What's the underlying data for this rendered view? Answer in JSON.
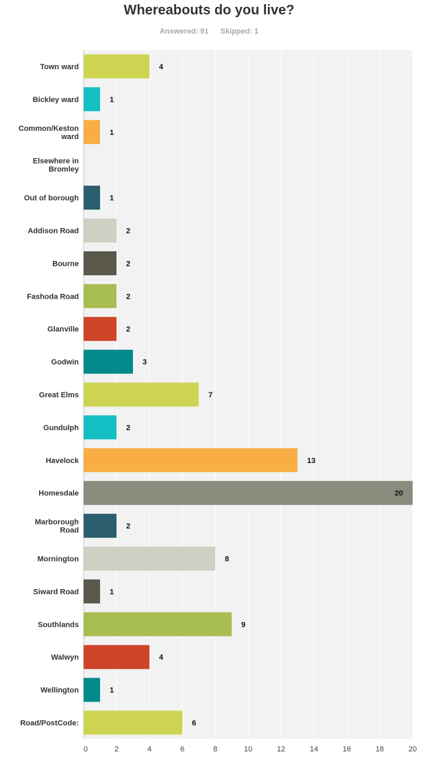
{
  "header": {
    "title": "Whereabouts do you live?",
    "answered": "Answered: 91",
    "skipped": "Skipped: 1"
  },
  "chart_data": {
    "type": "bar",
    "orientation": "horizontal",
    "title": "Whereabouts do you live?",
    "xlim": [
      0,
      20
    ],
    "xticks": [
      0,
      2,
      4,
      6,
      8,
      10,
      12,
      14,
      16,
      18,
      20
    ],
    "grid": true,
    "categories": [
      "Town ward",
      "Bickley ward",
      "Common/Keston ward",
      "Elsewhere in Bromley",
      "Out of borough",
      "Addison Road",
      "Bourne",
      "Fashoda Road",
      "Glanville",
      "Godwin",
      "Great Elms",
      "Gundulph",
      "Havelock",
      "Homesdale",
      "Marborough Road",
      "Mornington",
      "Siward Road",
      "Southlands",
      "Walwyn",
      "Wellington",
      "Road/PostCode:"
    ],
    "values": [
      4,
      1,
      1,
      0,
      1,
      2,
      2,
      2,
      2,
      3,
      7,
      2,
      13,
      20,
      2,
      8,
      1,
      9,
      4,
      1,
      6
    ],
    "value_labels": [
      "4",
      "1",
      "1",
      "",
      "1",
      "2",
      "2",
      "2",
      "2",
      "3",
      "7",
      "2",
      "13",
      "20",
      "2",
      "8",
      "1",
      "9",
      "4",
      "1",
      "6"
    ],
    "colors": [
      "#cdd452",
      "#14bfc4",
      "#f8ae45",
      "#cdd452",
      "#2b5f6e",
      "#d0cfc4",
      "#5b594c",
      "#a8bd52",
      "#ce4427",
      "#038a8c",
      "#cdd452",
      "#14bfc4",
      "#f8ae45",
      "#8b8c7e",
      "#2b5f6e",
      "#d0cfc4",
      "#5b594c",
      "#a8bd52",
      "#ce4427",
      "#038a8c",
      "#cdd452"
    ]
  }
}
